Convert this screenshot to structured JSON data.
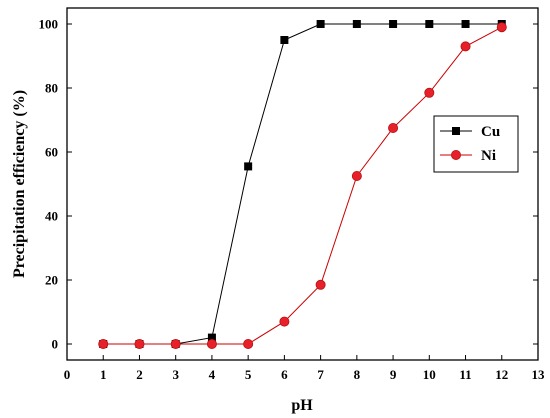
{
  "chart_data": {
    "type": "line",
    "title": "",
    "xlabel": "pH",
    "ylabel": "Precipitation efficiency (%)",
    "xlim": [
      0,
      13
    ],
    "ylim": [
      -5,
      105
    ],
    "xticks": [
      0,
      1,
      2,
      3,
      4,
      5,
      6,
      7,
      8,
      9,
      10,
      11,
      12,
      13
    ],
    "yticks": [
      0,
      20,
      40,
      60,
      80,
      100
    ],
    "grid": false,
    "legend_position": "right",
    "series": [
      {
        "name": "Cu",
        "marker": "square",
        "color": "#000000",
        "marker_color": "#000000",
        "x": [
          1,
          2,
          3,
          4,
          5,
          6,
          7,
          8,
          9,
          10,
          11,
          12
        ],
        "y": [
          0,
          0,
          0,
          2,
          55.5,
          95,
          100,
          100,
          100,
          100,
          100,
          100
        ]
      },
      {
        "name": "Ni",
        "marker": "circle",
        "color": "#cc0000",
        "marker_color": "#e8202a",
        "x": [
          1,
          2,
          3,
          4,
          5,
          6,
          7,
          8,
          9,
          10,
          11,
          12
        ],
        "y": [
          0,
          0,
          0,
          0,
          0,
          7,
          18.5,
          52.5,
          67.5,
          78.5,
          93,
          99
        ]
      }
    ]
  }
}
